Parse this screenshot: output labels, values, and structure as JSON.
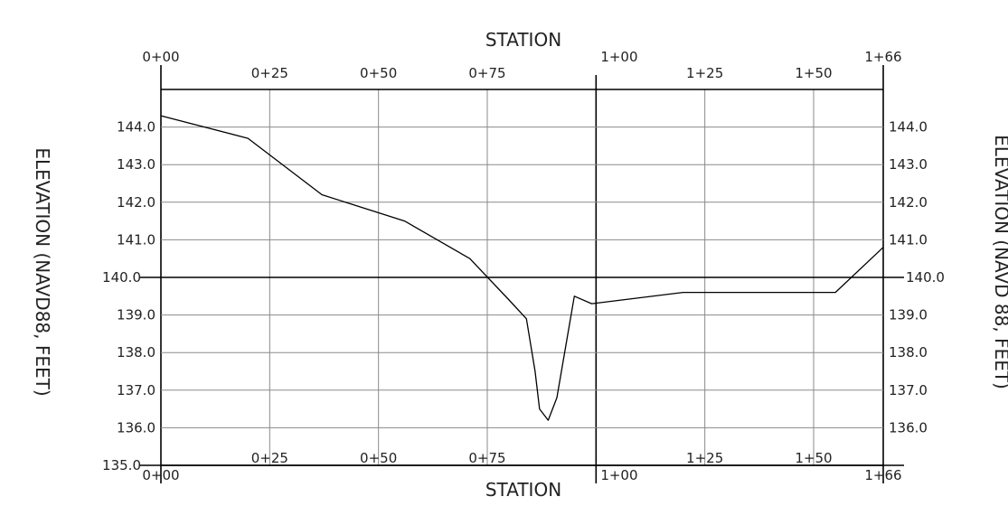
{
  "chart_data": {
    "type": "line",
    "title": "",
    "xlabel": "STATION",
    "ylabel": "ELEVATION (NAVD88, FEET)",
    "ylabel_right": "ELEVATION (NAVD 88, FEET)",
    "xlim": [
      0,
      166
    ],
    "ylim": [
      135,
      145
    ],
    "grid": true,
    "x_ticks": [
      {
        "value": 0,
        "label": "0+00"
      },
      {
        "value": 25,
        "label": "0+25"
      },
      {
        "value": 50,
        "label": "0+50"
      },
      {
        "value": 75,
        "label": "0+75"
      },
      {
        "value": 100,
        "label": "1+00"
      },
      {
        "value": 125,
        "label": "1+25"
      },
      {
        "value": 150,
        "label": "1+50"
      },
      {
        "value": 166,
        "label": "1+66"
      }
    ],
    "y_ticks_left": [
      {
        "value": 135,
        "label": "135.0"
      },
      {
        "value": 136,
        "label": "136.0"
      },
      {
        "value": 137,
        "label": "137.0"
      },
      {
        "value": 138,
        "label": "138.0"
      },
      {
        "value": 139,
        "label": "139.0"
      },
      {
        "value": 140,
        "label": "140.0"
      },
      {
        "value": 141,
        "label": "141.0"
      },
      {
        "value": 142,
        "label": "142.0"
      },
      {
        "value": 143,
        "label": "143.0"
      },
      {
        "value": 144,
        "label": "144.0"
      }
    ],
    "y_ticks_right": [
      {
        "value": 136,
        "label": "136.0"
      },
      {
        "value": 137,
        "label": "137.0"
      },
      {
        "value": 138,
        "label": "138.0"
      },
      {
        "value": 139,
        "label": "139.0"
      },
      {
        "value": 140,
        "label": "140.0"
      },
      {
        "value": 141,
        "label": "141.0"
      },
      {
        "value": 142,
        "label": "142.0"
      },
      {
        "value": 143,
        "label": "143.0"
      },
      {
        "value": 144,
        "label": "144.0"
      }
    ],
    "series": [
      {
        "x": [
          0,
          20,
          37,
          56,
          71,
          80,
          84,
          86,
          87,
          89,
          91,
          95,
          99,
          120,
          155,
          166
        ],
        "y": [
          144.3,
          143.7,
          142.2,
          141.5,
          140.5,
          139.4,
          138.9,
          137.5,
          136.5,
          136.2,
          136.8,
          139.5,
          139.3,
          139.6,
          139.6,
          140.8
        ]
      }
    ],
    "colors": {
      "line": "#000000",
      "grid": "#8a8a8a",
      "frame": "#000000"
    }
  }
}
